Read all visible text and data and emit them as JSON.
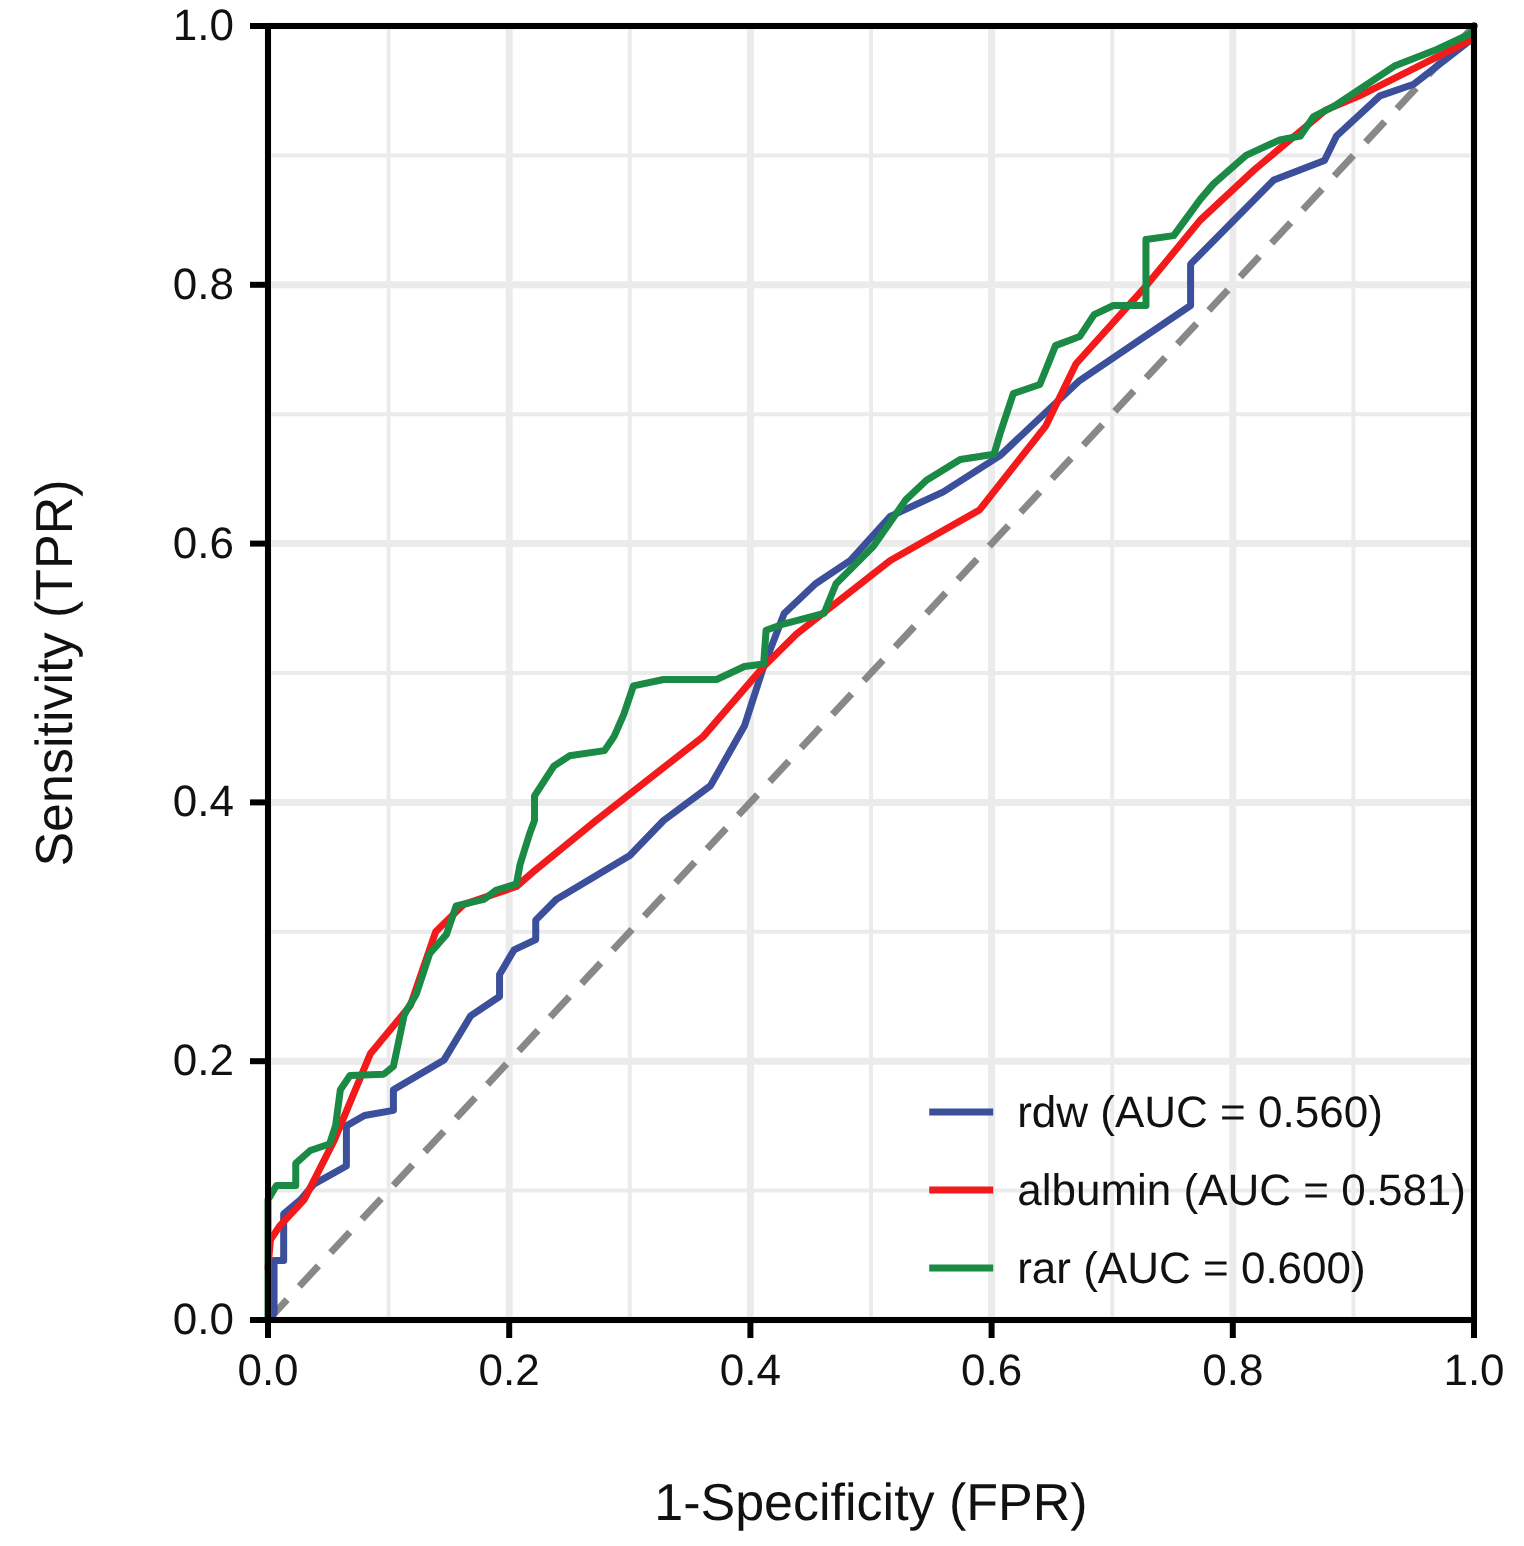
{
  "chart_data": {
    "type": "line",
    "xlabel": "1-Specificity (FPR)",
    "ylabel": "Sensitivity (TPR)",
    "xlim": [
      0,
      1
    ],
    "ylim": [
      0,
      1
    ],
    "xticks": [
      {
        "value": 0,
        "label": "0.0"
      },
      0.2,
      0.4,
      0.6,
      0.8,
      {
        "value": 1,
        "label": "1.0"
      }
    ],
    "yticks": [
      {
        "value": 0,
        "label": "0.0"
      },
      0.2,
      0.4,
      0.6,
      0.8,
      {
        "value": 1,
        "label": "1.0"
      }
    ],
    "grid": true,
    "legend": "bottom right",
    "line_style": "solid",
    "marker": "none",
    "series": [
      {
        "name": "rdw (AUC = 0.560)",
        "color": "#3b4f9a",
        "x": [
          0,
          0.005,
          0.005,
          0.013,
          0.013,
          0.027,
          0.038,
          0.065,
          0.065,
          0.08,
          0.104,
          0.104,
          0.146,
          0.168,
          0.192,
          0.192,
          0.204,
          0.222,
          0.222,
          0.239,
          0.3,
          0.328,
          0.367,
          0.395,
          0.411,
          0.428,
          0.454,
          0.483,
          0.516,
          0.56,
          0.607,
          0.673,
          0.765,
          0.765,
          0.834,
          0.876,
          0.886,
          0.922,
          0.95,
          0.997,
          1
        ],
        "values": [
          0,
          0.005,
          0.046,
          0.046,
          0.082,
          0.093,
          0.105,
          0.119,
          0.15,
          0.158,
          0.162,
          0.178,
          0.201,
          0.235,
          0.25,
          0.267,
          0.286,
          0.294,
          0.309,
          0.325,
          0.359,
          0.386,
          0.413,
          0.459,
          0.505,
          0.546,
          0.569,
          0.587,
          0.621,
          0.64,
          0.668,
          0.726,
          0.784,
          0.816,
          0.881,
          0.896,
          0.915,
          0.946,
          0.955,
          0.989,
          1
        ]
      },
      {
        "name": "albumin (AUC = 0.581)",
        "color": "#f21a1a",
        "x": [
          0,
          0.002,
          0.01,
          0.03,
          0.055,
          0.085,
          0.118,
          0.139,
          0.162,
          0.206,
          0.222,
          0.272,
          0.361,
          0.411,
          0.438,
          0.516,
          0.59,
          0.645,
          0.67,
          0.728,
          0.773,
          0.818,
          0.877,
          0.905,
          0.997,
          1
        ],
        "values": [
          0.04,
          0.062,
          0.073,
          0.093,
          0.139,
          0.206,
          0.243,
          0.3,
          0.321,
          0.335,
          0.348,
          0.386,
          0.451,
          0.505,
          0.53,
          0.587,
          0.626,
          0.691,
          0.739,
          0.799,
          0.85,
          0.889,
          0.935,
          0.946,
          0.989,
          1
        ]
      },
      {
        "name": "rar (AUC = 0.600)",
        "color": "#1a8a45",
        "x": [
          0,
          0,
          0.007,
          0.023,
          0.023,
          0.035,
          0.051,
          0.056,
          0.06,
          0.068,
          0.096,
          0.104,
          0.113,
          0.123,
          0.134,
          0.148,
          0.156,
          0.179,
          0.189,
          0.206,
          0.209,
          0.217,
          0.221,
          0.221,
          0.237,
          0.25,
          0.279,
          0.287,
          0.295,
          0.303,
          0.328,
          0.372,
          0.395,
          0.411,
          0.413,
          0.428,
          0.461,
          0.471,
          0.502,
          0.529,
          0.546,
          0.574,
          0.602,
          0.607,
          0.618,
          0.64,
          0.653,
          0.673,
          0.685,
          0.701,
          0.728,
          0.728,
          0.751,
          0.773,
          0.784,
          0.811,
          0.839,
          0.856,
          0.867,
          0.884,
          0.905,
          0.934,
          0.967,
          0.997,
          1
        ],
        "values": [
          0,
          0.093,
          0.104,
          0.104,
          0.121,
          0.131,
          0.136,
          0.15,
          0.178,
          0.189,
          0.19,
          0.196,
          0.236,
          0.252,
          0.283,
          0.298,
          0.32,
          0.325,
          0.332,
          0.337,
          0.352,
          0.376,
          0.386,
          0.405,
          0.428,
          0.436,
          0.44,
          0.451,
          0.468,
          0.49,
          0.495,
          0.495,
          0.505,
          0.507,
          0.533,
          0.538,
          0.546,
          0.569,
          0.598,
          0.634,
          0.649,
          0.665,
          0.669,
          0.685,
          0.716,
          0.723,
          0.753,
          0.76,
          0.777,
          0.784,
          0.784,
          0.835,
          0.838,
          0.866,
          0.878,
          0.9,
          0.912,
          0.915,
          0.93,
          0.938,
          0.951,
          0.969,
          0.981,
          0.994,
          1
        ]
      },
      {
        "color": "#888888",
        "line_style": "dashed",
        "x": [
          0,
          1
        ],
        "values": [
          0,
          1
        ]
      }
    ]
  }
}
